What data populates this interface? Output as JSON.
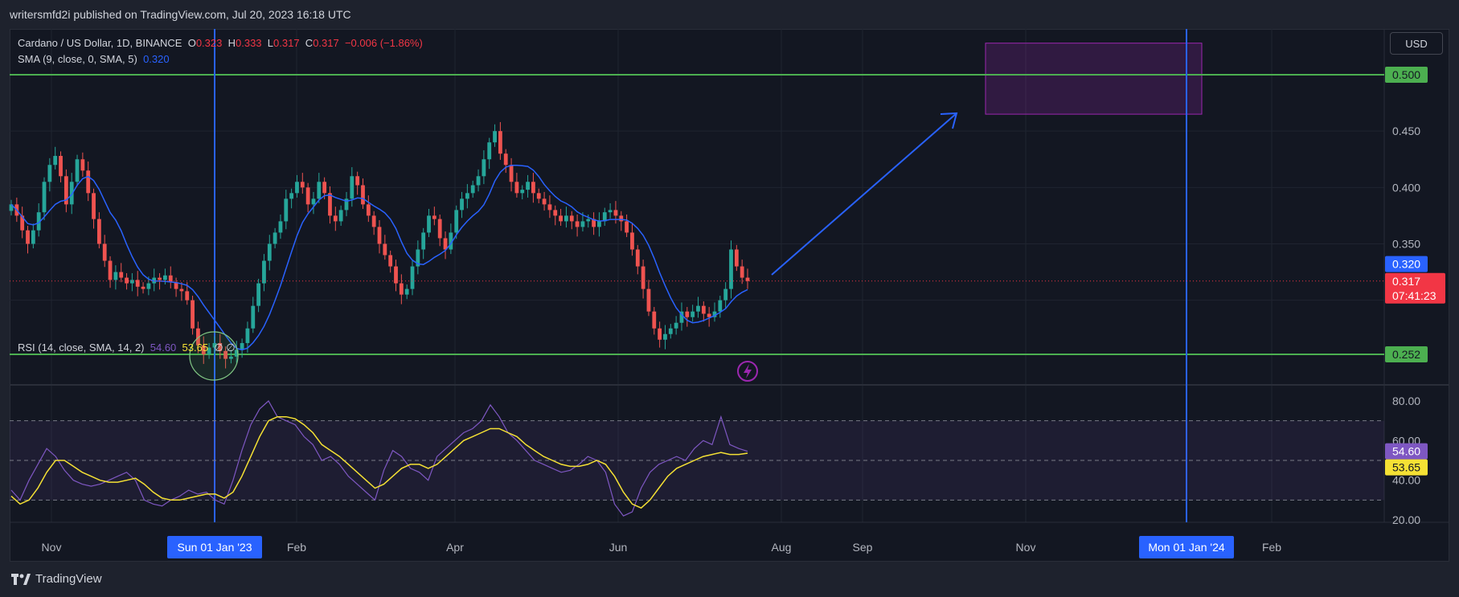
{
  "header": {
    "published": "writersmfd2i published on TradingView.com, Jul 20, 2023 16:18 UTC"
  },
  "footer": {
    "brand": "TradingView",
    "logo_icon": "tradingview-logo-icon"
  },
  "currency_button": "USD",
  "legend": {
    "symbol": "Cardano / US Dollar, 1D, BINANCE",
    "o_label": "O",
    "o_value": "0.323",
    "h_label": "H",
    "h_value": "0.333",
    "l_label": "L",
    "l_value": "0.317",
    "c_label": "C",
    "c_value": "0.317",
    "change": "−0.006 (−1.86%)",
    "sma_label": "SMA (9, close, 0, SMA, 5)",
    "sma_value": "0.320",
    "rsi_label": "RSI (14, close, SMA, 14, 2)",
    "rsi_value": "54.60",
    "rsi_ma_value": "53.65",
    "rsi_extra": "∅ ∅"
  },
  "colors": {
    "up": "#26a69a",
    "down": "#ef5350",
    "sma": "#2962ff",
    "rsi": "#7e57c2",
    "rsi_ma": "#f5e134",
    "level": "#4caf50",
    "box": "#9c27b0",
    "vline": "#2962ff"
  },
  "chart_data": [
    {
      "type": "candlestick",
      "symbol": "ADAUSD",
      "timeframe": "1D",
      "y_axis_ticks": [
        "0.450",
        "0.400",
        "0.350"
      ],
      "y_range": [
        0.235,
        0.5
      ],
      "x_axis_ticks": [
        "Nov",
        "Feb",
        "Apr",
        "Jun",
        "Aug",
        "Sep",
        "Nov",
        "Feb"
      ],
      "highlighted_dates": [
        "Sun 01 Jan '23",
        "Mon 01 Jan '24"
      ],
      "horizontal_levels": [
        {
          "value": 0.5,
          "label": "0.500"
        },
        {
          "value": 0.252,
          "label": "0.252"
        }
      ],
      "last_price": {
        "value": 0.317,
        "label": "0.317",
        "countdown": "07:41:23"
      },
      "sma_last": {
        "value": 0.32,
        "label": "0.320"
      },
      "target_box": {
        "price_from": 0.465,
        "price_to": 0.528,
        "date_from": "2023-10-10",
        "date_to": "2024-01-10"
      },
      "close_series": [
        0.385,
        0.375,
        0.362,
        0.35,
        0.362,
        0.378,
        0.405,
        0.42,
        0.428,
        0.41,
        0.385,
        0.405,
        0.425,
        0.415,
        0.395,
        0.372,
        0.35,
        0.335,
        0.318,
        0.325,
        0.32,
        0.315,
        0.318,
        0.312,
        0.31,
        0.315,
        0.32,
        0.318,
        0.322,
        0.316,
        0.31,
        0.308,
        0.3,
        0.275,
        0.26,
        0.252,
        0.258,
        0.262,
        0.255,
        0.248,
        0.25,
        0.256,
        0.262,
        0.275,
        0.295,
        0.315,
        0.335,
        0.35,
        0.36,
        0.37,
        0.39,
        0.395,
        0.405,
        0.4,
        0.385,
        0.39,
        0.405,
        0.395,
        0.375,
        0.37,
        0.38,
        0.39,
        0.41,
        0.402,
        0.385,
        0.375,
        0.365,
        0.35,
        0.34,
        0.33,
        0.315,
        0.305,
        0.31,
        0.33,
        0.345,
        0.36,
        0.375,
        0.372,
        0.355,
        0.345,
        0.36,
        0.38,
        0.39,
        0.395,
        0.402,
        0.41,
        0.425,
        0.44,
        0.45,
        0.43,
        0.42,
        0.405,
        0.395,
        0.398,
        0.405,
        0.395,
        0.39,
        0.385,
        0.38,
        0.375,
        0.37,
        0.375,
        0.37,
        0.365,
        0.37,
        0.372,
        0.365,
        0.37,
        0.378,
        0.38,
        0.375,
        0.37,
        0.36,
        0.345,
        0.33,
        0.31,
        0.29,
        0.275,
        0.265,
        0.27,
        0.275,
        0.28,
        0.29,
        0.285,
        0.29,
        0.295,
        0.288,
        0.285,
        0.29,
        0.3,
        0.31,
        0.345,
        0.33,
        0.32,
        0.317
      ]
    },
    {
      "type": "line",
      "title": "RSI",
      "y_axis_ticks": [
        "80.00",
        "60.00",
        "40.00",
        "20.00"
      ],
      "y_range": [
        15,
        85
      ],
      "bands": {
        "upper": 70,
        "middle": 50,
        "lower": 30
      },
      "series": [
        {
          "name": "RSI",
          "last": "54.60",
          "values": [
            35,
            30,
            40,
            48,
            56,
            52,
            45,
            40,
            38,
            37,
            38,
            40,
            42,
            44,
            40,
            30,
            28,
            27,
            30,
            32,
            35,
            33,
            34,
            30,
            28,
            40,
            55,
            68,
            76,
            80,
            72,
            70,
            68,
            62,
            58,
            50,
            52,
            48,
            42,
            38,
            34,
            30,
            45,
            55,
            52,
            46,
            44,
            40,
            52,
            56,
            60,
            64,
            66,
            70,
            78,
            72,
            64,
            60,
            55,
            50,
            48,
            46,
            44,
            45,
            48,
            52,
            50,
            44,
            28,
            22,
            24,
            36,
            44,
            48,
            50,
            52,
            50,
            56,
            60,
            58,
            72,
            58,
            56,
            54.6
          ]
        },
        {
          "name": "RSI-based MA",
          "last": "53.65",
          "values": [
            32,
            28,
            30,
            36,
            44,
            50,
            50,
            47,
            44,
            42,
            40,
            39,
            39,
            40,
            41,
            38,
            34,
            31,
            30,
            30,
            31,
            32,
            33,
            33,
            31,
            34,
            42,
            52,
            62,
            70,
            72,
            72,
            71,
            68,
            64,
            58,
            55,
            52,
            48,
            44,
            40,
            36,
            38,
            42,
            46,
            48,
            48,
            46,
            48,
            52,
            56,
            60,
            62,
            64,
            66,
            66,
            64,
            62,
            58,
            55,
            52,
            50,
            48,
            47,
            47,
            48,
            50,
            48,
            42,
            34,
            28,
            26,
            30,
            36,
            42,
            46,
            48,
            50,
            52,
            53,
            54,
            53,
            53,
            53.65
          ]
        }
      ]
    }
  ]
}
